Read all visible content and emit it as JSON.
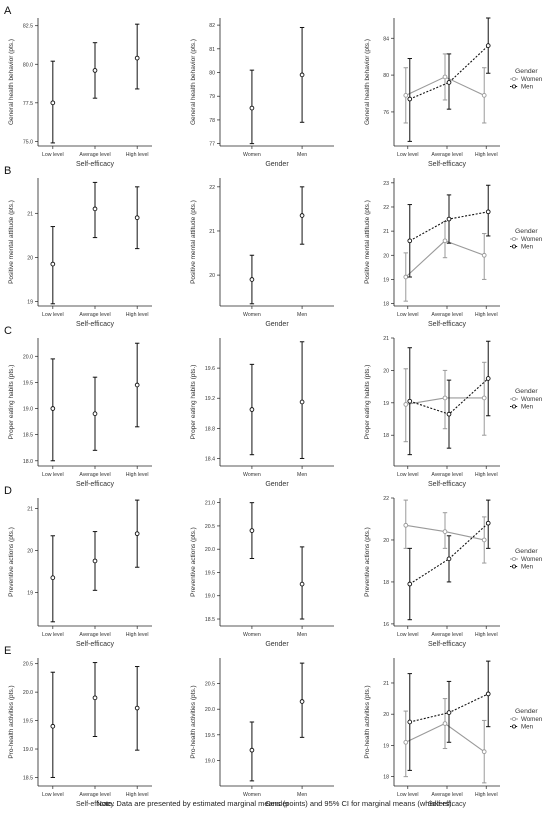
{
  "note": "Note. Data are presented by estimated marginal means (points) and 95% CI for marginal means (whiskers).",
  "legend": {
    "title": "Gender",
    "items": [
      "Women",
      "Men"
    ]
  },
  "colors": {
    "axis": "#222222",
    "women": "#9a9a9a",
    "men": "#111111",
    "text": "#333333"
  },
  "chart_data": [
    {
      "panel": "A",
      "type": "scatter",
      "xlabel": "Self-efficacy",
      "ylabel": "General health behavior (pts.)",
      "categories": [
        "Low level",
        "Average level",
        "High level"
      ],
      "ylim": [
        74.7,
        83.0
      ],
      "yticks": [
        75.0,
        77.5,
        80.0,
        82.5
      ],
      "ytick_labels": [
        "75.0",
        "77.5",
        "80.0",
        "82.5"
      ],
      "series": [
        {
          "values": [
            77.5,
            79.6,
            80.4
          ],
          "lower": [
            74.9,
            77.8,
            78.4
          ],
          "upper": [
            80.2,
            81.4,
            82.6
          ]
        }
      ]
    },
    {
      "panel": "A",
      "type": "scatter",
      "xlabel": "Gender",
      "ylabel": "General health behavior (pts.)",
      "categories": [
        "Women",
        "Men"
      ],
      "ylim": [
        76.9,
        82.3
      ],
      "yticks": [
        77,
        78,
        79,
        80,
        81,
        82
      ],
      "ytick_labels": [
        "77",
        "78",
        "79",
        "80",
        "81",
        "82"
      ],
      "series": [
        {
          "values": [
            78.5,
            79.9
          ],
          "lower": [
            77.0,
            77.9
          ],
          "upper": [
            80.1,
            81.9
          ]
        }
      ]
    },
    {
      "panel": "A",
      "type": "line",
      "xlabel": "Self-efficacy",
      "ylabel": "General health behavior (pts.)",
      "categories": [
        "Low level",
        "Average level",
        "High level"
      ],
      "ylim": [
        72.3,
        86.2
      ],
      "yticks": [
        76,
        80,
        84
      ],
      "ytick_labels": [
        "76",
        "80",
        "84"
      ],
      "series": [
        {
          "name": "Women",
          "values": [
            77.8,
            79.8,
            77.8
          ],
          "lower": [
            74.8,
            77.3,
            74.8
          ],
          "upper": [
            80.8,
            82.3,
            80.8
          ]
        },
        {
          "name": "Men",
          "values": [
            77.4,
            79.2,
            83.2
          ],
          "lower": [
            72.8,
            76.3,
            80.2
          ],
          "upper": [
            81.8,
            82.3,
            86.2
          ]
        }
      ]
    },
    {
      "panel": "B",
      "type": "scatter",
      "xlabel": "Self-efficacy",
      "ylabel": "Positive mental attitude (pts.)",
      "categories": [
        "Low level",
        "Average level",
        "High level"
      ],
      "ylim": [
        18.9,
        21.8
      ],
      "yticks": [
        19,
        20,
        21
      ],
      "ytick_labels": [
        "19",
        "20",
        "21"
      ],
      "series": [
        {
          "values": [
            19.85,
            21.1,
            20.9
          ],
          "lower": [
            18.95,
            20.45,
            20.2
          ],
          "upper": [
            20.7,
            21.7,
            21.6
          ]
        }
      ]
    },
    {
      "panel": "B",
      "type": "scatter",
      "xlabel": "Gender",
      "ylabel": "Positive mental attitude (pts.)",
      "categories": [
        "Women",
        "Men"
      ],
      "ylim": [
        19.3,
        22.2
      ],
      "yticks": [
        20,
        21,
        22
      ],
      "ytick_labels": [
        "20",
        "21",
        "22"
      ],
      "series": [
        {
          "values": [
            19.9,
            21.35
          ],
          "lower": [
            19.35,
            20.7
          ],
          "upper": [
            20.45,
            22.0
          ]
        }
      ]
    },
    {
      "panel": "B",
      "type": "line",
      "xlabel": "Self-efficacy",
      "ylabel": "Positive mental attitude (pts.)",
      "categories": [
        "Low level",
        "Average level",
        "High level"
      ],
      "ylim": [
        17.9,
        23.2
      ],
      "yticks": [
        18,
        19,
        20,
        21,
        22,
        23
      ],
      "ytick_labels": [
        "18",
        "19",
        "20",
        "21",
        "22",
        "23"
      ],
      "series": [
        {
          "name": "Women",
          "values": [
            19.1,
            20.6,
            20.0
          ],
          "lower": [
            18.1,
            19.9,
            19.0
          ],
          "upper": [
            20.1,
            21.4,
            20.9
          ]
        },
        {
          "name": "Men",
          "values": [
            20.6,
            21.5,
            21.8
          ],
          "lower": [
            19.1,
            20.5,
            20.8
          ],
          "upper": [
            22.1,
            22.5,
            22.9
          ]
        }
      ]
    },
    {
      "panel": "C",
      "type": "scatter",
      "xlabel": "Self-efficacy",
      "ylabel": "Proper eating habits (pts.)",
      "categories": [
        "Low level",
        "Average level",
        "High level"
      ],
      "ylim": [
        17.9,
        20.35
      ],
      "yticks": [
        18.0,
        18.5,
        19.0,
        19.5,
        20.0
      ],
      "ytick_labels": [
        "18.0",
        "18.5",
        "19.0",
        "19.5",
        "20.0"
      ],
      "series": [
        {
          "values": [
            19.0,
            18.9,
            19.45
          ],
          "lower": [
            18.0,
            18.2,
            18.65
          ],
          "upper": [
            19.95,
            19.6,
            20.25
          ]
        }
      ]
    },
    {
      "panel": "C",
      "type": "scatter",
      "xlabel": "Gender",
      "ylabel": "Proper eating habits (pts.)",
      "categories": [
        "Women",
        "Men"
      ],
      "ylim": [
        18.3,
        20.0
      ],
      "yticks": [
        18.4,
        18.8,
        19.2,
        19.6
      ],
      "ytick_labels": [
        "18.4",
        "18.8",
        "19.2",
        "19.6"
      ],
      "series": [
        {
          "values": [
            19.05,
            19.15
          ],
          "lower": [
            18.45,
            18.4
          ],
          "upper": [
            19.65,
            19.95
          ]
        }
      ]
    },
    {
      "panel": "C",
      "type": "line",
      "xlabel": "Self-efficacy",
      "ylabel": "Proper eating habits (pts.)",
      "categories": [
        "Low level",
        "Average level",
        "High level"
      ],
      "ylim": [
        17.05,
        21.0
      ],
      "yticks": [
        18,
        19,
        20,
        21
      ],
      "ytick_labels": [
        "18",
        "19",
        "20",
        "21"
      ],
      "series": [
        {
          "name": "Women",
          "values": [
            18.95,
            19.15,
            19.15
          ],
          "lower": [
            17.8,
            18.2,
            18.0
          ],
          "upper": [
            20.05,
            20.0,
            20.25
          ]
        },
        {
          "name": "Men",
          "values": [
            19.05,
            18.65,
            19.75
          ],
          "lower": [
            17.4,
            17.6,
            18.6
          ],
          "upper": [
            20.7,
            19.7,
            20.9
          ]
        }
      ]
    },
    {
      "panel": "D",
      "type": "scatter",
      "xlabel": "Self-efficacy",
      "ylabel": "Preventive actions (pts.)",
      "categories": [
        "Low level",
        "Average level",
        "High level"
      ],
      "ylim": [
        18.2,
        21.25
      ],
      "yticks": [
        19,
        20,
        21
      ],
      "ytick_labels": [
        "19",
        "20",
        "21"
      ],
      "series": [
        {
          "values": [
            19.35,
            19.75,
            20.4
          ],
          "lower": [
            18.3,
            19.05,
            19.6
          ],
          "upper": [
            20.35,
            20.45,
            21.2
          ]
        }
      ]
    },
    {
      "panel": "D",
      "type": "scatter",
      "xlabel": "Gender",
      "ylabel": "Preventive actions (pts.)",
      "categories": [
        "Women",
        "Men"
      ],
      "ylim": [
        18.35,
        21.1
      ],
      "yticks": [
        18.5,
        19.0,
        19.5,
        20.0,
        20.5,
        21.0
      ],
      "ytick_labels": [
        "18.5",
        "19.0",
        "19.5",
        "20.0",
        "20.5",
        "21.0"
      ],
      "series": [
        {
          "values": [
            20.4,
            19.25
          ],
          "lower": [
            19.8,
            18.5
          ],
          "upper": [
            21.0,
            20.05
          ]
        }
      ]
    },
    {
      "panel": "D",
      "type": "line",
      "xlabel": "Self-efficacy",
      "ylabel": "Preventive actions (pts.)",
      "categories": [
        "Low level",
        "Average level",
        "High level"
      ],
      "ylim": [
        15.9,
        22.0
      ],
      "yticks": [
        16,
        18,
        20,
        22
      ],
      "ytick_labels": [
        "16",
        "18",
        "20",
        "22"
      ],
      "series": [
        {
          "name": "Women",
          "values": [
            20.7,
            20.4,
            20.0
          ],
          "lower": [
            19.6,
            19.6,
            18.9
          ],
          "upper": [
            21.9,
            21.3,
            21.1
          ]
        },
        {
          "name": "Men",
          "values": [
            17.9,
            19.1,
            20.8
          ],
          "lower": [
            16.2,
            18.0,
            19.6
          ],
          "upper": [
            19.6,
            20.2,
            21.9
          ]
        }
      ]
    },
    {
      "panel": "E",
      "type": "scatter",
      "xlabel": "Self-efficacy",
      "ylabel": "Pro-health activities (pts.)",
      "categories": [
        "Low level",
        "Average level",
        "High level"
      ],
      "ylim": [
        18.35,
        20.6
      ],
      "yticks": [
        18.5,
        19.0,
        19.5,
        20.0,
        20.5
      ],
      "ytick_labels": [
        "18.5",
        "19.0",
        "19.5",
        "20.0",
        "20.5"
      ],
      "series": [
        {
          "values": [
            19.4,
            19.9,
            19.72
          ],
          "lower": [
            18.5,
            19.22,
            18.98
          ],
          "upper": [
            20.35,
            20.52,
            20.45
          ]
        }
      ]
    },
    {
      "panel": "E",
      "type": "scatter",
      "xlabel": "Gender",
      "ylabel": "Pro-health activities (pts.)",
      "categories": [
        "Women",
        "Men"
      ],
      "ylim": [
        18.5,
        21.0
      ],
      "yticks": [
        19.0,
        19.5,
        20.0,
        20.5
      ],
      "ytick_labels": [
        "19.0",
        "19.5",
        "20.0",
        "20.5"
      ],
      "series": [
        {
          "values": [
            19.2,
            20.15
          ],
          "lower": [
            18.6,
            19.45
          ],
          "upper": [
            19.75,
            20.9
          ]
        }
      ]
    },
    {
      "panel": "E",
      "type": "line",
      "xlabel": "Self-efficacy",
      "ylabel": "Pro-health activities (pts.)",
      "categories": [
        "Low level",
        "Average level",
        "High level"
      ],
      "ylim": [
        17.7,
        21.8
      ],
      "yticks": [
        18,
        19,
        20,
        21
      ],
      "ytick_labels": [
        "18",
        "19",
        "20",
        "21"
      ],
      "series": [
        {
          "name": "Women",
          "values": [
            19.1,
            19.7,
            18.8
          ],
          "lower": [
            18.0,
            18.9,
            17.8
          ],
          "upper": [
            20.1,
            20.5,
            19.8
          ]
        },
        {
          "name": "Men",
          "values": [
            19.75,
            20.05,
            20.65
          ],
          "lower": [
            18.2,
            19.1,
            19.6
          ],
          "upper": [
            21.3,
            21.05,
            21.7
          ]
        }
      ]
    }
  ]
}
